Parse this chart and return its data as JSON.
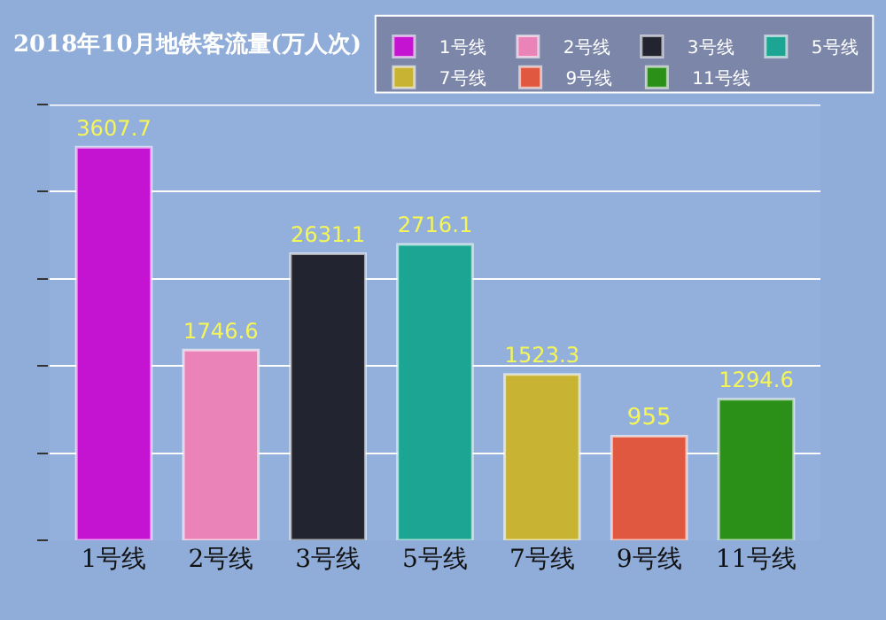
{
  "chart_data": {
    "type": "bar",
    "title": "2018年10月地铁客流量(万人次)",
    "categories": [
      "1号线",
      "2号线",
      "3号线",
      "5号线",
      "7号线",
      "9号线",
      "11号线"
    ],
    "series": [
      {
        "name": "1号线",
        "color": "#c414d2",
        "values": [
          3607.7,
          null,
          null,
          null,
          null,
          null,
          null
        ]
      },
      {
        "name": "2号线",
        "color": "#ea84b8",
        "values": [
          null,
          1746.6,
          null,
          null,
          null,
          null,
          null
        ]
      },
      {
        "name": "3号线",
        "color": "#22252f",
        "values": [
          null,
          null,
          2631.1,
          null,
          null,
          null,
          null
        ]
      },
      {
        "name": "5号线",
        "color": "#1ca592",
        "values": [
          null,
          null,
          null,
          2716.1,
          null,
          null,
          null
        ]
      },
      {
        "name": "7号线",
        "color": "#c8b432",
        "values": [
          null,
          null,
          null,
          null,
          1523.3,
          null,
          null
        ]
      },
      {
        "name": "9号线",
        "color": "#e05840",
        "values": [
          null,
          null,
          null,
          null,
          null,
          955,
          null
        ]
      },
      {
        "name": "11号线",
        "color": "#2a9018",
        "values": [
          null,
          null,
          null,
          null,
          null,
          null,
          1294.6
        ]
      }
    ],
    "ylim": [
      0,
      4000
    ],
    "yticks": [
      {
        "value": 0,
        "label": null
      },
      {
        "value": 800,
        "label": null
      },
      {
        "value": 1600,
        "label": null
      },
      {
        "value": 2400,
        "label": null
      },
      {
        "value": 3200,
        "label": null
      },
      {
        "value": 4000,
        "label": null
      }
    ],
    "grid": "y",
    "legend": "top right",
    "data_labels": true,
    "tick_labels": "x"
  }
}
